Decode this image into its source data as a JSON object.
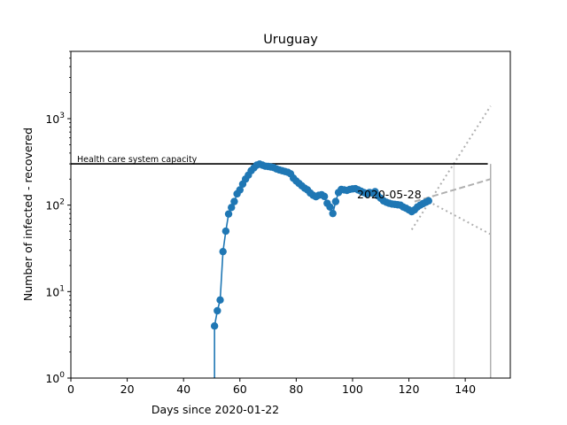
{
  "chart_data": {
    "type": "line",
    "title": "Uruguay",
    "xlabel": "Days since 2020-01-22",
    "ylabel": "Number of infected - recovered",
    "xlim": [
      0,
      156
    ],
    "ylim": [
      1,
      6000
    ],
    "yscale": "log",
    "grid": false,
    "x_ticks": [
      0,
      20,
      40,
      60,
      80,
      100,
      120,
      140
    ],
    "y_ticks": [
      {
        "value": 1,
        "label": "10^0"
      },
      {
        "value": 10,
        "label": "10^1"
      },
      {
        "value": 100,
        "label": "10^2"
      },
      {
        "value": 1000,
        "label": "10^3"
      }
    ],
    "capacity": {
      "value": 300,
      "x_range": [
        0,
        148
      ],
      "label": "Health care system capacity"
    },
    "date_annotation": {
      "x": 103,
      "y": 128,
      "text": "2020-05-28"
    },
    "colors": {
      "series": "#1f77b4",
      "capacity": "#000000",
      "projection": "#b0b0b0",
      "projection_light": "#dddddd"
    },
    "series": [
      {
        "type": "line",
        "x": [
          51,
          52,
          53,
          54,
          55,
          56,
          57,
          58,
          59,
          60,
          61,
          62,
          63,
          64,
          65,
          66,
          67,
          68,
          69,
          70,
          71,
          72,
          73,
          74,
          75,
          76,
          77,
          78,
          79,
          80,
          81,
          82,
          83,
          84,
          85,
          86,
          87,
          88,
          89,
          90,
          91,
          92,
          93,
          94,
          95,
          96,
          97,
          98,
          99,
          100,
          101,
          102,
          103,
          104,
          105,
          106,
          107,
          108,
          109,
          110,
          111,
          112,
          113,
          114,
          115,
          116,
          117,
          118,
          119,
          120,
          121,
          122,
          123,
          124,
          125,
          126,
          127
        ],
        "values": [
          4,
          6,
          8,
          29,
          50,
          79,
          94,
          110,
          135,
          150,
          175,
          200,
          222,
          250,
          270,
          290,
          298,
          290,
          282,
          280,
          276,
          272,
          262,
          255,
          250,
          245,
          240,
          230,
          205,
          190,
          178,
          167,
          157,
          150,
          138,
          130,
          125,
          130,
          132,
          126,
          105,
          95,
          80,
          110,
          140,
          152,
          150,
          148,
          152,
          154,
          155,
          150,
          145,
          140,
          135,
          140,
          138,
          143,
          128,
          120,
          112,
          108,
          105,
          103,
          102,
          101,
          100,
          95,
          92,
          88,
          84,
          88,
          95,
          100,
          104,
          108,
          112
        ]
      }
    ],
    "projection": {
      "center": {
        "x": [
          122,
          149
        ],
        "values": [
          110,
          200
        ]
      },
      "upper": {
        "x": [
          121,
          149
        ],
        "values": [
          52,
          1400
        ]
      },
      "lower": {
        "x": [
          127,
          149
        ],
        "values": [
          110,
          46
        ]
      },
      "vlines_x": [
        136,
        149
      ]
    }
  }
}
